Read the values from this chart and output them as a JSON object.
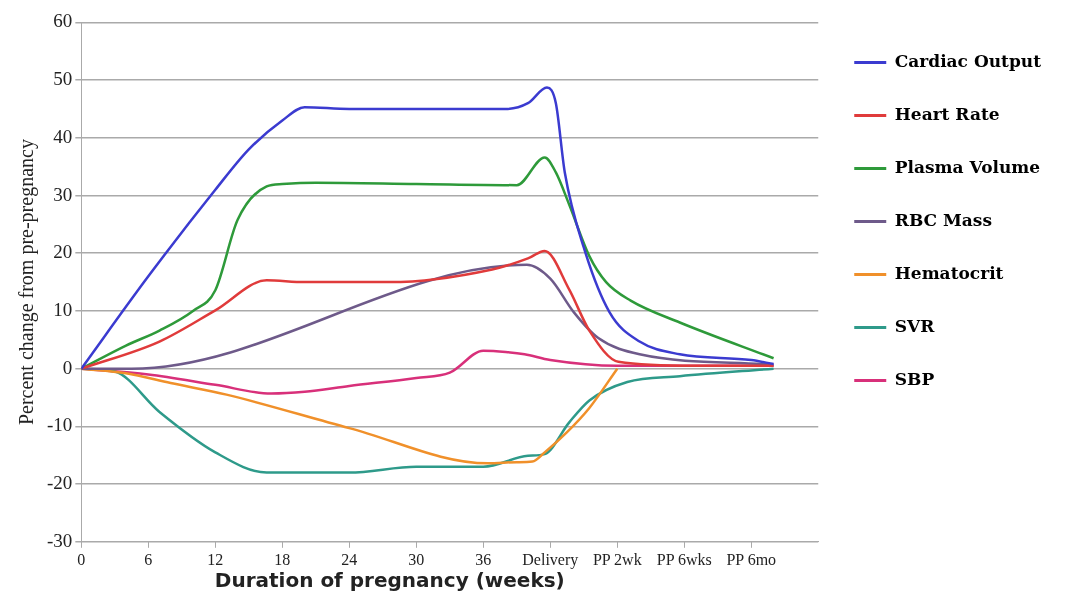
{
  "chart_data": {
    "type": "line",
    "xlabel": "Duration of pregnancy (weeks)",
    "ylabel": "Percent change from pre-pregnancy",
    "xlim": [
      0,
      66
    ],
    "xticks": [
      0,
      6,
      12,
      18,
      24,
      30,
      36,
      {
        "value": 42,
        "label": "Delivery"
      },
      {
        "value": 48,
        "label": "PP 2wk"
      },
      {
        "value": 54,
        "label": "PP 6wks"
      },
      {
        "value": 60,
        "label": "PP 6mo"
      }
    ],
    "ylim": [
      -30,
      60
    ],
    "yticks": [
      -30,
      -20,
      -10,
      0,
      10,
      20,
      30,
      40,
      50,
      60
    ],
    "grid": "y",
    "legend": "right",
    "marker": "none",
    "line_style": "solid",
    "series": [
      {
        "name": "Cardiac Output",
        "color": "#3b3bd0",
        "x": [
          0,
          6,
          12,
          15,
          18,
          20,
          24,
          30,
          36,
          38,
          40,
          41.7,
          42.5,
          43.3,
          45,
          47.3,
          50,
          53.6,
          60,
          62
        ],
        "values": [
          0,
          16,
          31,
          38,
          43,
          45.3,
          45,
          45,
          45,
          45,
          46,
          48.7,
          46,
          34,
          21,
          9.8,
          4.7,
          2.5,
          1.5,
          0.8
        ]
      },
      {
        "name": "Heart Rate",
        "color": "#e03b3b",
        "x": [
          0,
          7,
          12,
          16.6,
          20,
          27.6,
          36.8,
          40,
          41.5,
          43.7,
          45.5,
          48.1,
          55,
          62
        ],
        "values": [
          0,
          4.7,
          10.1,
          15.3,
          15,
          15,
          17.2,
          19.1,
          20.4,
          13.7,
          6.6,
          1.2,
          0.5,
          0.5
        ]
      },
      {
        "name": "Plasma Volume",
        "color": "#2e9a3a",
        "x": [
          0,
          4,
          7,
          10,
          12,
          14,
          16.6,
          18,
          21,
          30,
          39,
          41.5,
          42.5,
          43.7,
          45.5,
          47,
          49.2,
          53.6,
          62
        ],
        "values": [
          0,
          4,
          6.6,
          10,
          13.6,
          25.8,
          31.6,
          32,
          32.2,
          32,
          31.8,
          36.6,
          34,
          28.4,
          19.5,
          15,
          11.8,
          8,
          1.8
        ]
      },
      {
        "name": "RBC Mass",
        "color": "#6e5a8a",
        "x": [
          0,
          4.5,
          39.9,
          42,
          44.1,
          46.3,
          50,
          62
        ],
        "values": [
          0,
          0,
          18,
          15.6,
          9.8,
          5.3,
          2.5,
          0.7
        ]
      },
      {
        "name": "Hematocrit",
        "color": "#f0902a",
        "x": [
          0,
          4,
          8,
          13,
          24,
          36.4,
          39,
          40.4,
          41.5,
          43.5,
          45.5,
          48
        ],
        "values": [
          0,
          -0.8,
          -2.5,
          -4.5,
          -10.3,
          -16.4,
          -16.2,
          -16.1,
          -14.5,
          -11,
          -6.8,
          0
        ]
      },
      {
        "name": "SVR",
        "color": "#2e9a8a",
        "x": [
          0,
          3,
          7,
          12,
          16.6,
          24,
          30,
          36,
          40,
          41.5,
          43.7,
          45.5,
          48.9,
          53.6,
          62
        ],
        "values": [
          0,
          -0.5,
          -7.5,
          -14.5,
          -18,
          -18,
          -17,
          -17,
          -15.1,
          -14.8,
          -9.3,
          -5.5,
          -2.3,
          -1.3,
          0
        ]
      },
      {
        "name": "SBP",
        "color": "#d8307a",
        "x": [
          0,
          6,
          12,
          17,
          20,
          24,
          30,
          33,
          36,
          38,
          39.7,
          42,
          48,
          62
        ],
        "values": [
          0,
          -1,
          -2.8,
          -4.3,
          -4,
          -3,
          -1.6,
          -0.7,
          3.1,
          2.9,
          2.5,
          1.5,
          0.5,
          0.5
        ]
      }
    ]
  }
}
